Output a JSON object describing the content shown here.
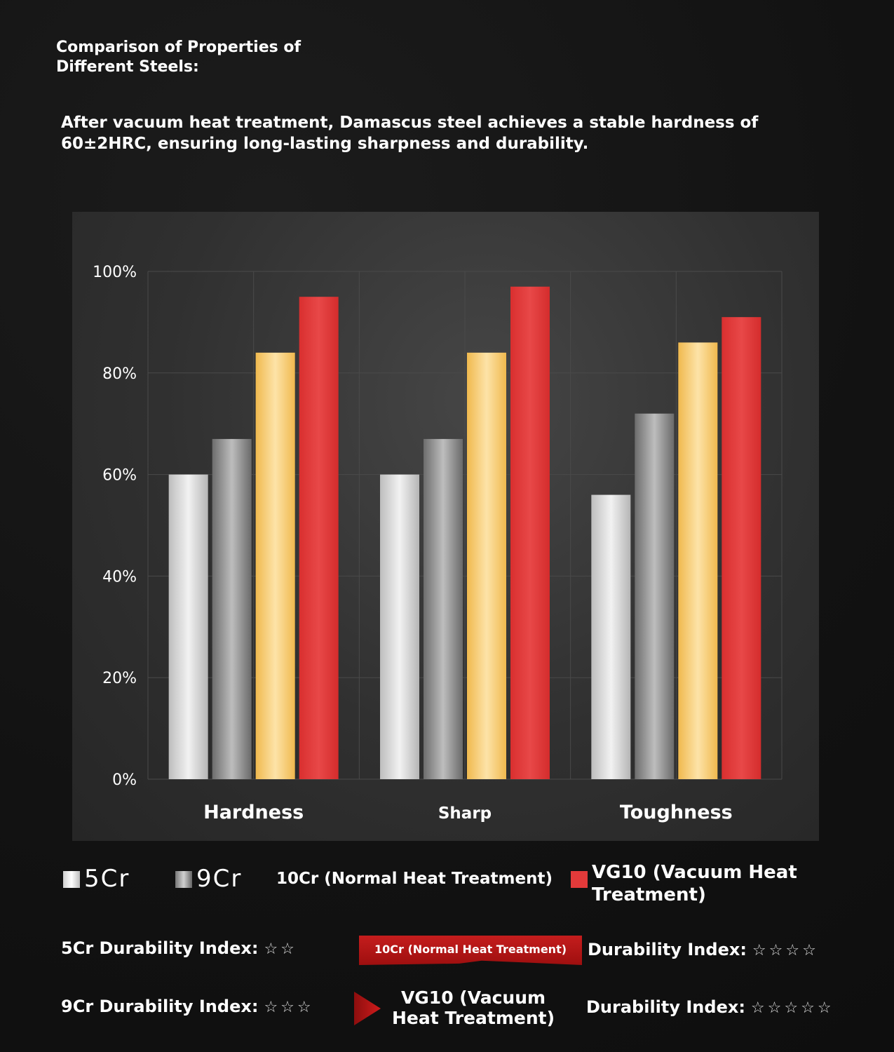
{
  "heading": "Comparison of Properties of Different Steels:",
  "intro": "After vacuum heat treatment, Damascus steel achieves a stable hardness of 60±2HRC, ensuring long-lasting sharpness and durability.",
  "chart_data": {
    "type": "bar",
    "categories": [
      "Hardness",
      "Sharp",
      "Toughness"
    ],
    "series": [
      {
        "name": "5Cr",
        "values": [
          60,
          60,
          56
        ],
        "color": "#d9d9d9"
      },
      {
        "name": "9Cr",
        "values": [
          67,
          67,
          72
        ],
        "color": "#9a9a9a"
      },
      {
        "name": "10Cr (Normal Heat Treatment)",
        "values": [
          84,
          84,
          86
        ],
        "color": "#f4c86e"
      },
      {
        "name": "VG10 (Vacuum Heat Treatment)",
        "values": [
          95,
          97,
          91
        ],
        "color": "#e33a3a"
      }
    ],
    "yticks": [
      "0%",
      "20%",
      "40%",
      "60%",
      "80%",
      "100%"
    ],
    "ylim": [
      0,
      100
    ],
    "grid": true,
    "legend": "bottom"
  },
  "legend": {
    "l5cr": "5Cr",
    "l9cr": "9Cr",
    "l10cr": "10Cr (Normal Heat Treatment)",
    "lvg10": "VG10 (Vacuum Heat Treatment)"
  },
  "durability": {
    "cr5_label": "5Cr Durability Index:",
    "cr5_stars": "☆☆",
    "cr9_label": "9Cr Durability Index:",
    "cr9_stars": "☆☆☆",
    "cr10_banner": "10Cr (Normal Heat Treatment)",
    "cr10_label": "Durability Index:",
    "cr10_stars": "☆☆☆☆",
    "vg10_label_name": "VG10 (Vacuum Heat Treatment)",
    "vg10_label": "Durability Index:",
    "vg10_stars": "☆☆☆☆☆"
  }
}
